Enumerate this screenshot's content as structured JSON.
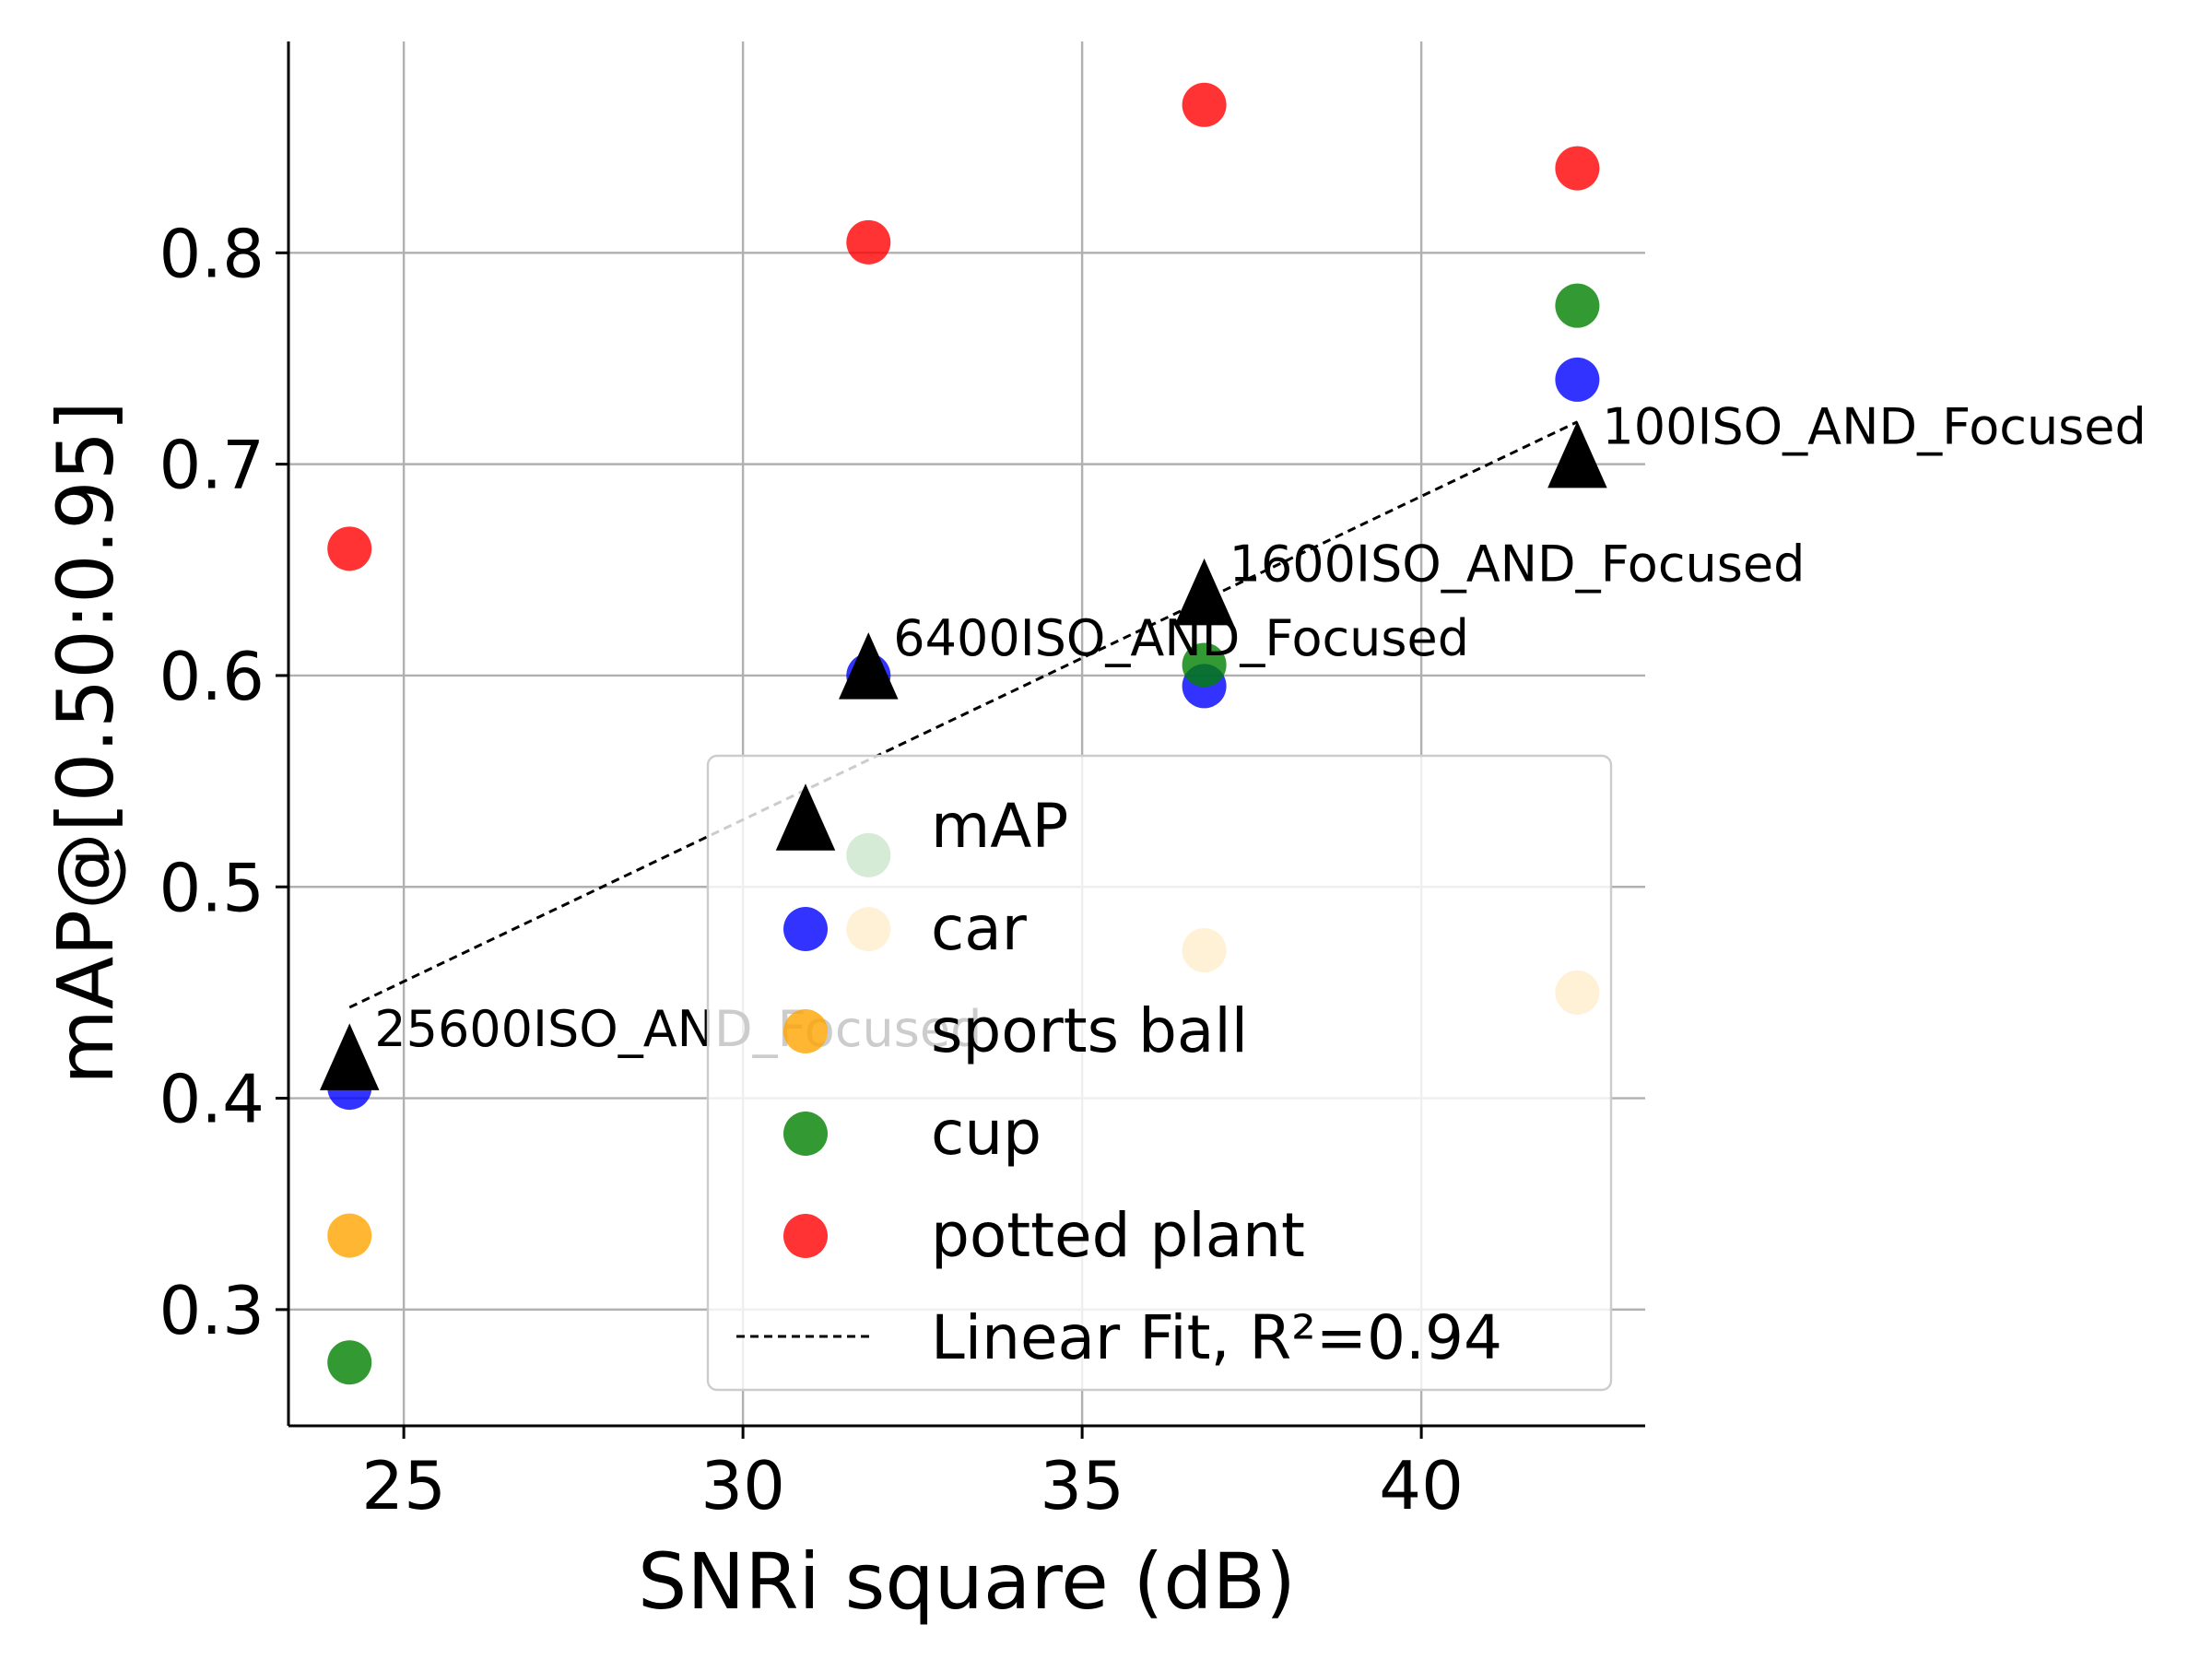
{
  "chart_data": {
    "type": "scatter",
    "title": "",
    "xlabel": "SNRi square (dB)",
    "ylabel": "mAP@[0.50:0.95]",
    "xlim": [
      23.3,
      43.3
    ],
    "ylim": [
      0.245,
      0.9
    ],
    "xticks": [
      25,
      30,
      35,
      40
    ],
    "yticks": [
      0.3,
      0.4,
      0.5,
      0.6,
      0.7,
      0.8
    ],
    "xtick_labels": [
      "25",
      "30",
      "35",
      "40"
    ],
    "ytick_labels": [
      "0.3",
      "0.4",
      "0.5",
      "0.6",
      "0.7",
      "0.8"
    ],
    "grid": true,
    "legend_position": "lower-right",
    "x": [
      24.2,
      31.85,
      36.8,
      42.3
    ],
    "series": [
      {
        "name": "mAP",
        "marker": "triangle",
        "color": "#000000",
        "values": [
          0.415,
          0.6,
          0.635,
          0.7
        ]
      },
      {
        "name": "car",
        "marker": "circle",
        "color": "#0000ff",
        "values": [
          0.405,
          0.6,
          0.595,
          0.74
        ]
      },
      {
        "name": "sports ball",
        "marker": "circle",
        "color": "#ffa500",
        "values": [
          0.335,
          0.48,
          0.47,
          0.45
        ]
      },
      {
        "name": "cup",
        "marker": "circle",
        "color": "#008000",
        "values": [
          0.275,
          0.515,
          0.605,
          0.775
        ]
      },
      {
        "name": "potted plant",
        "marker": "circle",
        "color": "#ff0000",
        "values": [
          0.66,
          0.805,
          0.87,
          0.84
        ]
      }
    ],
    "fit": {
      "name": "Linear Fit, R²=0.94",
      "x": [
        24.2,
        42.3
      ],
      "y": [
        0.443,
        0.72
      ]
    },
    "annotations": [
      {
        "text": "25600ISO_AND_Focused",
        "x": 24.2,
        "y": 0.415
      },
      {
        "text": "6400ISO_AND_Focused",
        "x": 31.85,
        "y": 0.6
      },
      {
        "text": "1600ISO_AND_Focused",
        "x": 36.8,
        "y": 0.635
      },
      {
        "text": "100ISO_AND_Focused",
        "x": 42.3,
        "y": 0.7
      }
    ]
  }
}
